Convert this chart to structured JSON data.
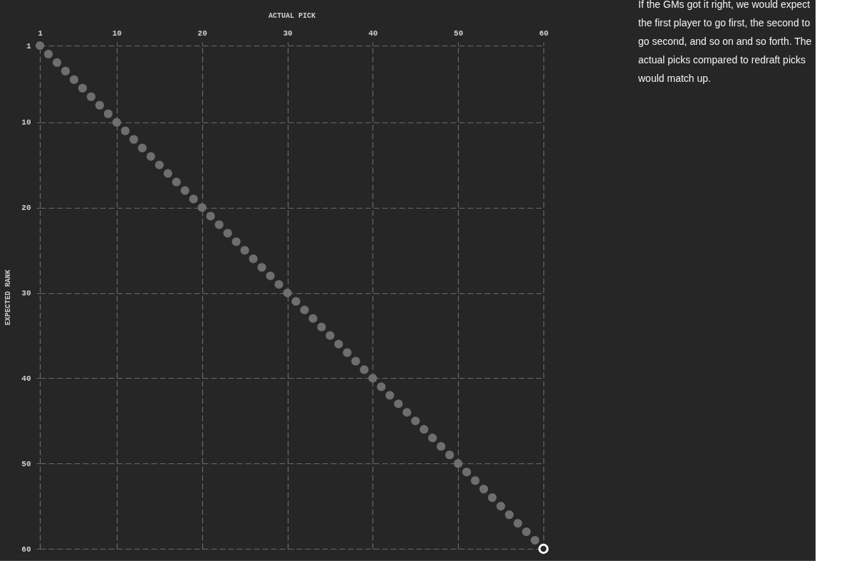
{
  "chart_data": {
    "type": "scatter",
    "xlabel": "ACTUAL PICK",
    "ylabel": "EXPECTED RANK",
    "x": [
      1,
      2,
      3,
      4,
      5,
      6,
      7,
      8,
      9,
      10,
      11,
      12,
      13,
      14,
      15,
      16,
      17,
      18,
      19,
      20,
      21,
      22,
      23,
      24,
      25,
      26,
      27,
      28,
      29,
      30,
      31,
      32,
      33,
      34,
      35,
      36,
      37,
      38,
      39,
      40,
      41,
      42,
      43,
      44,
      45,
      46,
      47,
      48,
      49,
      50,
      51,
      52,
      53,
      54,
      55,
      56,
      57,
      58,
      59
    ],
    "series": [
      {
        "color": "#6e6e6e",
        "values": [
          1,
          2,
          3,
          4,
          5,
          6,
          7,
          8,
          9,
          10,
          11,
          12,
          13,
          14,
          15,
          16,
          17,
          18,
          19,
          20,
          21,
          22,
          23,
          24,
          25,
          26,
          27,
          28,
          29,
          30,
          31,
          32,
          33,
          34,
          35,
          36,
          37,
          38,
          39,
          40,
          41,
          42,
          43,
          44,
          45,
          46,
          47,
          48,
          49,
          50,
          51,
          52,
          53,
          54,
          55,
          56,
          57,
          58,
          59
        ]
      },
      {
        "color": "#ffffff",
        "x": [
          60
        ],
        "values": [
          60
        ]
      }
    ],
    "xlim": [
      1,
      60
    ],
    "ylim": [
      60,
      1
    ],
    "xticks": [
      1,
      10,
      20,
      30,
      40,
      50,
      60
    ],
    "yticks": [
      1,
      10,
      20,
      30,
      40,
      50,
      60
    ],
    "grid": true,
    "marker": "circle",
    "annotations": [
      "If the GMs got it right, we would expect the first player to go first, the second to go second, and so on and so forth. The actual picks compared to redraft picks would match up."
    ]
  }
}
